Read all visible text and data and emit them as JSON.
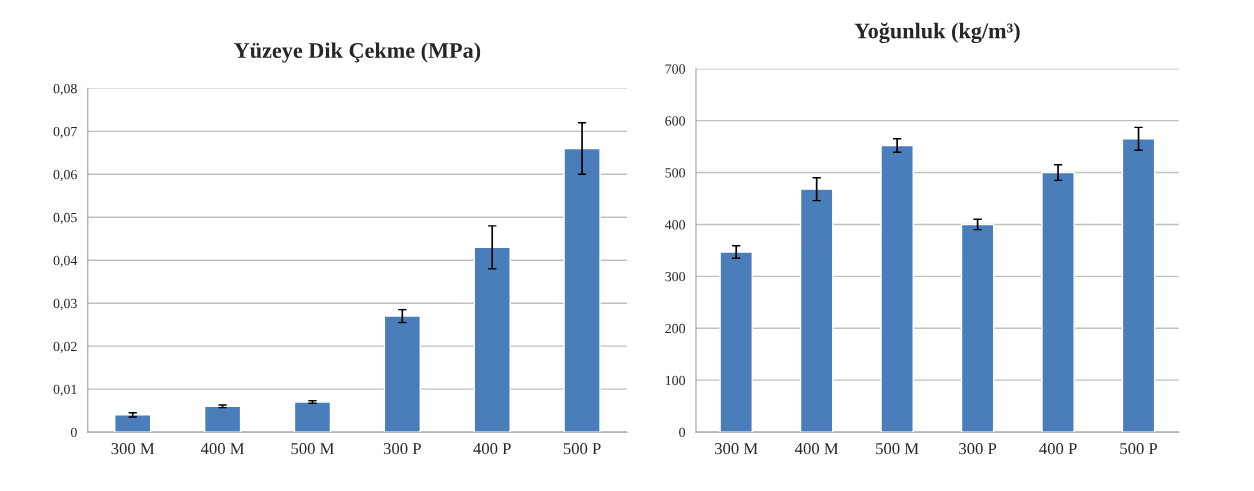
{
  "chart_data": [
    {
      "type": "bar",
      "title": "Yüzeye Dik Çekme (MPa)",
      "categories": [
        "300 M",
        "400 M",
        "500 M",
        "300 P",
        "400 P",
        "500 P"
      ],
      "values": [
        0.004,
        0.006,
        0.007,
        0.027,
        0.043,
        0.066
      ],
      "errors": [
        0.0005,
        0.0003,
        0.0003,
        0.0015,
        0.005,
        0.006
      ],
      "color": "#4a7ebb",
      "ylim": [
        0,
        0.08
      ],
      "yticks": [
        0,
        {
          "value": 0.01,
          "label": "0,01"
        },
        {
          "value": 0.02,
          "label": "0,02"
        },
        {
          "value": 0.03,
          "label": "0,03"
        },
        {
          "value": 0.04,
          "label": "0,04"
        },
        {
          "value": 0.05,
          "label": "0,05"
        },
        {
          "value": 0.06,
          "label": "0,06"
        },
        {
          "value": 0.07,
          "label": "0,07"
        },
        {
          "value": 0.08,
          "label": "0,08"
        }
      ],
      "grid": "y",
      "legend": false
    },
    {
      "type": "bar",
      "title": "Yoğunluk (kg/m³)",
      "categories": [
        "300 M",
        "400 M",
        "500 M",
        "300 P",
        "400 P",
        "500 P"
      ],
      "values": [
        347,
        468,
        552,
        400,
        500,
        565
      ],
      "errors": [
        12,
        22,
        13,
        10,
        15,
        22
      ],
      "color": "#4a7ebb",
      "ylim": [
        0,
        700
      ],
      "yticks": [
        0,
        100,
        200,
        300,
        400,
        500,
        600,
        700
      ],
      "grid": "y",
      "legend": false
    }
  ]
}
